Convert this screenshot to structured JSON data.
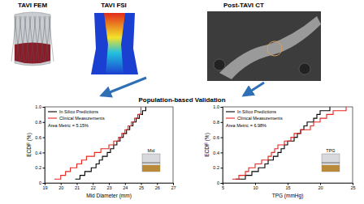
{
  "title": "Population-based Validation",
  "panels": [
    {
      "label": "TAVI FEM"
    },
    {
      "label": "TAVI FSI"
    },
    {
      "label": "Post-TAVI CT"
    }
  ],
  "chart_data": [
    {
      "type": "line",
      "xlabel": "Mid Diameter (mm)",
      "ylabel": "ECDF (%)",
      "xlim": [
        19,
        27
      ],
      "xticks": [
        19,
        20,
        21,
        22,
        23,
        24,
        25,
        26,
        27
      ],
      "ylim": [
        0,
        1
      ],
      "yticks": [
        0,
        0.2,
        0.4,
        0.6,
        0.8,
        {
          "value": 1,
          "label": "1.0"
        }
      ],
      "legend": "upper left",
      "grid": false,
      "annotations": [
        {
          "text": "Area Metric = 5.15%"
        },
        {
          "text": "Mid"
        }
      ],
      "series": [
        {
          "name": "In Silico Predictions",
          "color": "#000000",
          "line_style": "step",
          "x": [
            20.9,
            21.2,
            21.5,
            21.9,
            22.2,
            22.4,
            22.6,
            22.9,
            23.1,
            23.3,
            23.5,
            23.7,
            23.9,
            24.1,
            24.3,
            24.5,
            24.7,
            24.9,
            25.1,
            25.3
          ],
          "values": [
            0.05,
            0.1,
            0.15,
            0.2,
            0.25,
            0.3,
            0.35,
            0.4,
            0.45,
            0.5,
            0.55,
            0.6,
            0.65,
            0.7,
            0.75,
            0.8,
            0.85,
            0.9,
            0.95,
            1.0
          ]
        },
        {
          "name": "Clinical Measurements",
          "color": "#e8251f",
          "line_style": "step",
          "x": [
            19.6,
            20.0,
            20.3,
            20.6,
            21.0,
            21.3,
            21.6,
            22.1,
            22.5,
            23.0,
            23.3,
            23.6,
            23.8,
            24.0,
            24.2,
            24.4,
            24.6,
            24.8,
            25.0,
            25.0
          ],
          "values": [
            0.05,
            0.1,
            0.15,
            0.2,
            0.25,
            0.3,
            0.35,
            0.4,
            0.45,
            0.5,
            0.55,
            0.6,
            0.65,
            0.7,
            0.75,
            0.8,
            0.85,
            0.9,
            0.95,
            1.0
          ]
        }
      ]
    },
    {
      "type": "line",
      "xlabel": "TPG (mmHg)",
      "ylabel": "ECDF (%)",
      "xlim": [
        5,
        25
      ],
      "xticks": [
        5,
        10,
        15,
        20,
        25
      ],
      "ylim": [
        0,
        1
      ],
      "yticks": [
        0,
        0.2,
        0.4,
        0.6,
        0.8,
        {
          "value": 1,
          "label": "1.0"
        }
      ],
      "legend": "upper left",
      "grid": false,
      "annotations": [
        {
          "text": "Area Metric = 6.98%"
        },
        {
          "text": "TPG"
        }
      ],
      "series": [
        {
          "name": "In Silico Predictions",
          "color": "#000000",
          "line_style": "step",
          "x": [
            7.0,
            8.5,
            9.5,
            10.5,
            11.5,
            12.0,
            12.8,
            13.5,
            14.0,
            14.5,
            15.0,
            16.0,
            16.5,
            17.0,
            17.5,
            18.0,
            19.0,
            19.5,
            20.0,
            21.5
          ],
          "values": [
            0.05,
            0.1,
            0.15,
            0.2,
            0.25,
            0.3,
            0.35,
            0.4,
            0.45,
            0.5,
            0.55,
            0.6,
            0.65,
            0.7,
            0.75,
            0.8,
            0.85,
            0.9,
            0.95,
            1.0
          ]
        },
        {
          "name": "Clinical Measurements",
          "color": "#e8251f",
          "line_style": "step",
          "x": [
            6.5,
            7.5,
            8.5,
            9.0,
            10.0,
            11.0,
            12.0,
            12.5,
            13.0,
            13.5,
            14.5,
            15.5,
            16.0,
            17.0,
            18.5,
            19.0,
            20.0,
            21.0,
            22.0,
            24.0
          ],
          "values": [
            0.05,
            0.1,
            0.15,
            0.2,
            0.25,
            0.3,
            0.35,
            0.4,
            0.45,
            0.5,
            0.55,
            0.6,
            0.65,
            0.7,
            0.75,
            0.8,
            0.85,
            0.9,
            0.95,
            1.0
          ]
        }
      ]
    }
  ]
}
